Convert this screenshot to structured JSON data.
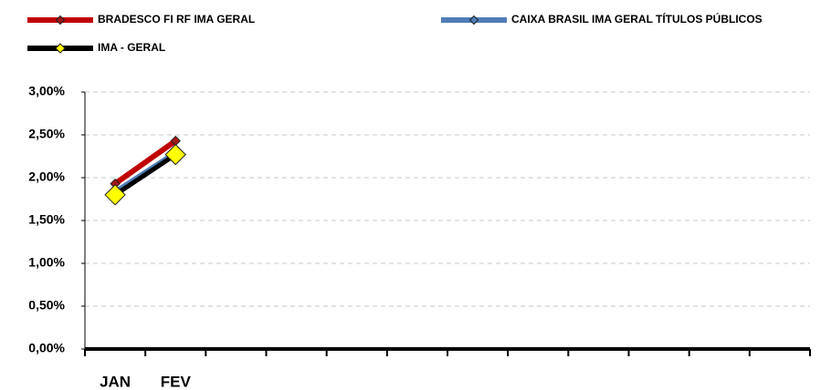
{
  "chart_data": {
    "type": "line",
    "categories": [
      "JAN",
      "FEV",
      null,
      null,
      null,
      null,
      null,
      null,
      null,
      null,
      null,
      null
    ],
    "series": [
      {
        "name": "BRADESCO FI RF IMA GERAL",
        "color": "#c00000",
        "marker_color": "#a01818",
        "values": [
          1.93,
          2.43,
          null,
          null,
          null,
          null,
          null,
          null,
          null,
          null,
          null,
          null
        ]
      },
      {
        "name": "CAIXA BRASIL IMA GERAL TÍTULOS PÚBLICOS",
        "color": "#4f7db8",
        "marker_color": "#4f7db8",
        "values": [
          1.83,
          2.29,
          null,
          null,
          null,
          null,
          null,
          null,
          null,
          null,
          null,
          null
        ]
      },
      {
        "name": "IMA - GERAL",
        "color": "#000000",
        "marker_color": "#ffff00",
        "values": [
          1.8,
          2.27,
          null,
          null,
          null,
          null,
          null,
          null,
          null,
          null,
          null,
          null
        ]
      }
    ],
    "ylim": [
      0,
      3
    ],
    "yticks": [
      {
        "value": 0,
        "label": "0,00%"
      },
      {
        "value": 0.5,
        "label": "0,50%"
      },
      {
        "value": 1,
        "label": "1,00%"
      },
      {
        "value": 1.5,
        "label": "1,50%"
      },
      {
        "value": 2,
        "label": "2,00%"
      },
      {
        "value": 2.5,
        "label": "2,50%"
      },
      {
        "value": 3,
        "label": "3,00%"
      }
    ],
    "grid": true
  }
}
